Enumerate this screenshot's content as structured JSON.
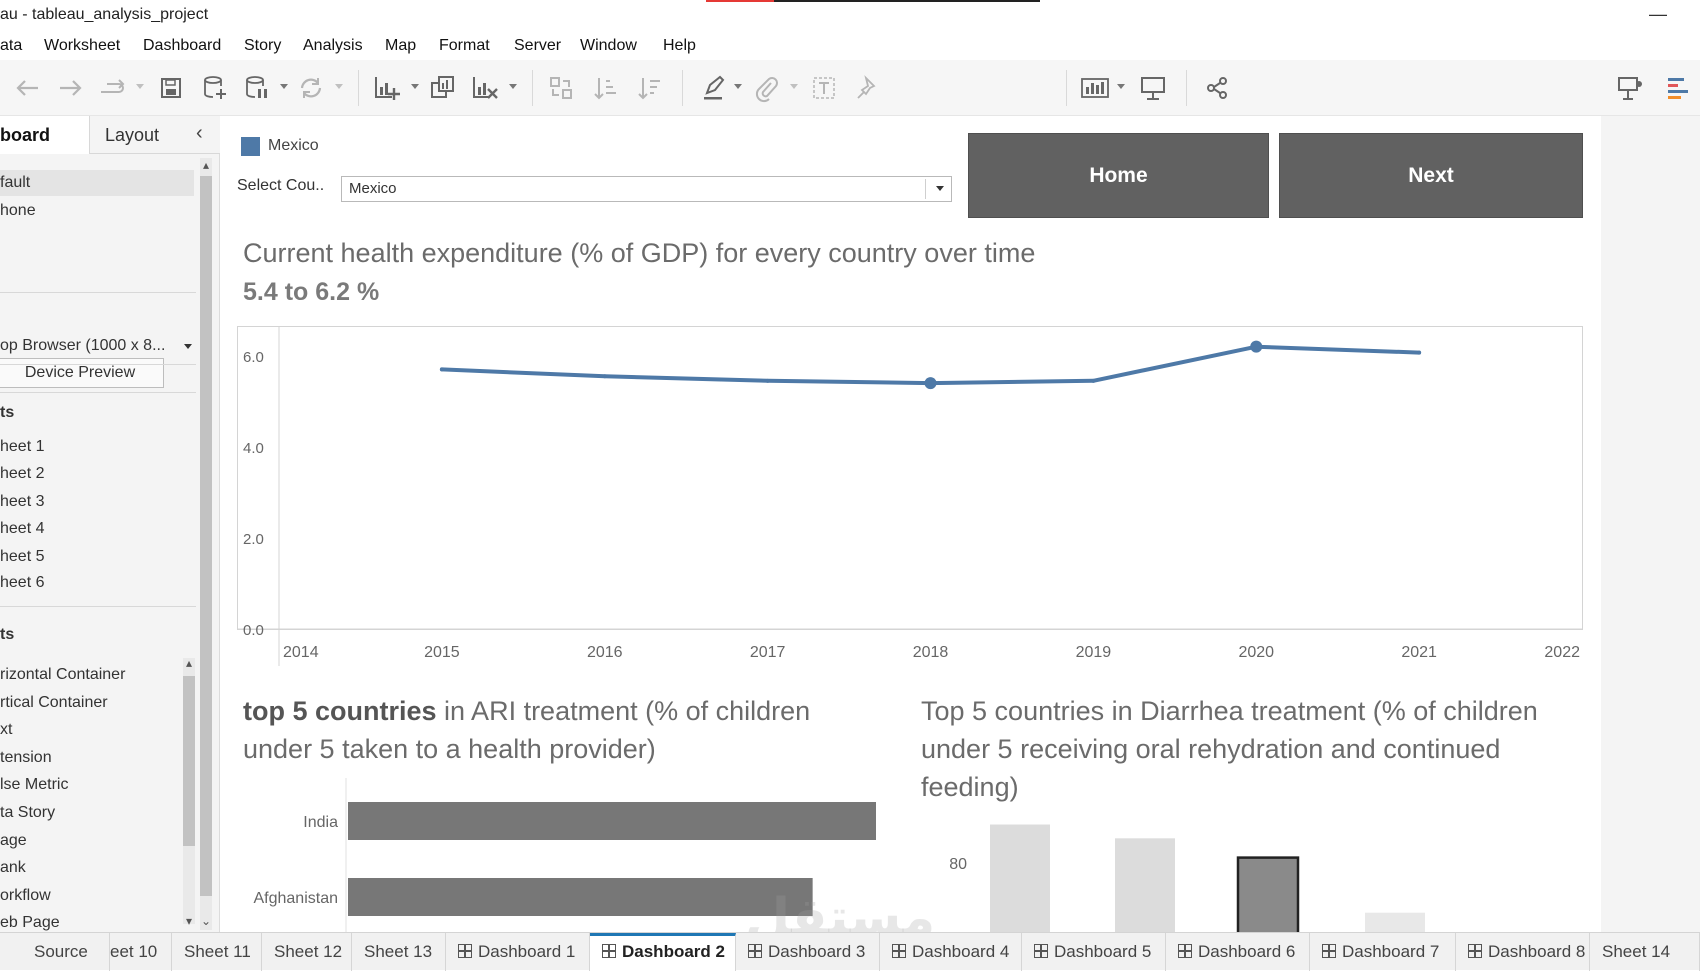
{
  "window": {
    "title": "au - tableau_analysis_project"
  },
  "menu": [
    "ata",
    "Worksheet",
    "Dashboard",
    "Story",
    "Analysis",
    "Map",
    "Format",
    "Server",
    "Window",
    "Help"
  ],
  "left_pane": {
    "tab_dashboard": "board",
    "tab_layout": "Layout",
    "devices": [
      "fault",
      "hone"
    ],
    "device_preview_label": "Device Preview",
    "size_label": "op Browser (1000 x 8...",
    "sheets_header": "ts",
    "sheets": [
      "heet 1",
      "heet 2",
      "heet 3",
      "heet 4",
      "heet 5",
      "heet 6"
    ],
    "objects_header": "ts",
    "objects": [
      "rizontal Container",
      "rtical Container",
      "xt",
      "tension",
      "lse Metric",
      "ta Story",
      "age",
      "ank",
      "orkflow",
      "eb Page"
    ]
  },
  "dashboard": {
    "legend_label": "Mexico",
    "filter_label": "Select Cou..",
    "filter_value": "Mexico",
    "home_button": "Home",
    "next_button": "Next",
    "line_title": "Current health expenditure (% of GDP) for every country over time",
    "line_subtitle": "5.4 to 6.2  %",
    "ari_title_strong": "top 5  countries",
    "ari_title_rest": " in ARI treatment (% of children under 5 taken to a health provider)",
    "dia_title": "Top 5 countries in Diarrhea treatment (% of children under 5 receiving oral rehydration and continued feeding)"
  },
  "colors": {
    "series": "#4e79a7",
    "bar": "#777777",
    "button": "#616161"
  },
  "chart_data": [
    {
      "type": "line",
      "title": "Current health expenditure (% of GDP) for every country over time",
      "series": [
        {
          "name": "Mexico",
          "x": [
            2015,
            2016,
            2017,
            2018,
            2019,
            2020,
            2021
          ],
          "values": [
            5.7,
            5.55,
            5.45,
            5.4,
            5.45,
            6.2,
            6.07
          ]
        }
      ],
      "highlighted_x": [
        2018,
        2020
      ],
      "xlim": [
        2014,
        2022
      ],
      "ylim": [
        0,
        6.5
      ],
      "x_ticks": [
        "2014",
        "2015",
        "2016",
        "2017",
        "2018",
        "2019",
        "2020",
        "2021",
        "2022"
      ],
      "y_ticks": [
        "0.0",
        "2.0",
        "4.0",
        "6.0"
      ],
      "grid": false
    },
    {
      "type": "bar",
      "orientation": "horizontal",
      "title": "top 5  countries in ARI treatment (% of children under 5 taken to a health provider)",
      "categories": [
        "India",
        "Afghanistan"
      ],
      "values": [
        100,
        88
      ],
      "xlim": [
        0,
        100
      ]
    },
    {
      "type": "bar",
      "title": "Top 5 countries in Diarrhea treatment (% of children under 5 receiving oral rehydration and continued feeding)",
      "values": [
        94,
        89,
        82,
        62
      ],
      "highlighted_index": 2,
      "y_ticks": [
        "80"
      ],
      "ylim": [
        55,
        100
      ]
    }
  ],
  "sheet_tabs": [
    {
      "label": "Source",
      "icon": false
    },
    {
      "label": "eet 10",
      "icon": false
    },
    {
      "label": "Sheet 11",
      "icon": false
    },
    {
      "label": "Sheet 12",
      "icon": false
    },
    {
      "label": "Sheet 13",
      "icon": false
    },
    {
      "label": "Dashboard 1",
      "icon": true
    },
    {
      "label": "Dashboard 2",
      "icon": true,
      "active": true
    },
    {
      "label": "Dashboard 3",
      "icon": true
    },
    {
      "label": "Dashboard 4",
      "icon": true
    },
    {
      "label": "Dashboard 5",
      "icon": true
    },
    {
      "label": "Dashboard 6",
      "icon": true
    },
    {
      "label": "Dashboard 7",
      "icon": true
    },
    {
      "label": "Dashboard 8",
      "icon": true
    },
    {
      "label": "Sheet 14",
      "icon": false
    }
  ],
  "watermark": "مستقل"
}
